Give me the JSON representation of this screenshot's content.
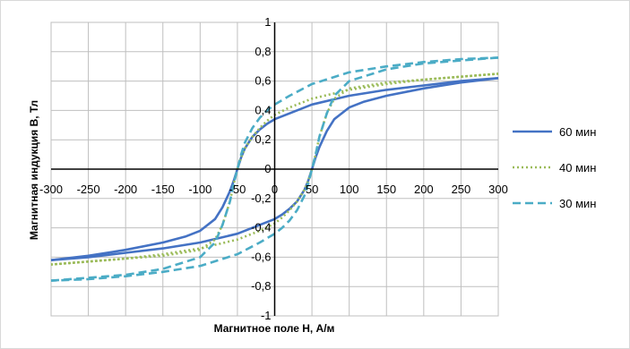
{
  "chart_data": {
    "type": "line",
    "title": "",
    "xlabel": "Магнитное поле H, А/м",
    "ylabel": "Магнитная индукция B, Тл",
    "xlim": [
      -300,
      300
    ],
    "ylim": [
      -1,
      1
    ],
    "x_ticks": [
      -300,
      -250,
      -200,
      -150,
      -100,
      -50,
      0,
      50,
      100,
      150,
      200,
      250,
      300
    ],
    "x_tick_labels": [
      "-300",
      "-250",
      "-200",
      "-150",
      "-100",
      "-50",
      "0",
      "50",
      "100",
      "150",
      "200",
      "250",
      "300"
    ],
    "y_ticks": [
      -1,
      -0.8,
      -0.6,
      -0.4,
      -0.2,
      0,
      0.2,
      0.4,
      0.6,
      0.8,
      1
    ],
    "y_tick_labels": [
      "-1",
      "-0,8",
      "-0,6",
      "-0,4",
      "-0,2",
      "0",
      "0,2",
      "0,4",
      "0,6",
      "0,8",
      "1"
    ],
    "grid": true,
    "legend_position": "right",
    "series": [
      {
        "name": "60 мин",
        "color": "#4472c4",
        "style": "solid",
        "upper_branch": {
          "x": [
            -300,
            -250,
            -200,
            -150,
            -120,
            -100,
            -80,
            -70,
            -60,
            -55,
            -50,
            -45,
            -40,
            -30,
            -20,
            -10,
            0,
            20,
            50,
            100,
            150,
            200,
            250,
            300
          ],
          "y": [
            -0.62,
            -0.59,
            -0.55,
            -0.5,
            -0.46,
            -0.42,
            -0.34,
            -0.26,
            -0.15,
            -0.08,
            0.0,
            0.08,
            0.14,
            0.22,
            0.27,
            0.31,
            0.34,
            0.38,
            0.44,
            0.5,
            0.54,
            0.57,
            0.6,
            0.62
          ]
        },
        "lower_branch": {
          "x": [
            300,
            250,
            200,
            150,
            120,
            100,
            80,
            70,
            60,
            55,
            50,
            45,
            40,
            30,
            20,
            10,
            0,
            -20,
            -50,
            -100,
            -150,
            -200,
            -250,
            -300
          ],
          "y": [
            0.62,
            0.59,
            0.55,
            0.5,
            0.46,
            0.42,
            0.34,
            0.26,
            0.15,
            0.08,
            0.0,
            -0.08,
            -0.14,
            -0.22,
            -0.27,
            -0.31,
            -0.34,
            -0.38,
            -0.44,
            -0.5,
            -0.54,
            -0.57,
            -0.6,
            -0.62
          ]
        }
      },
      {
        "name": "40 мин",
        "color": "#9bbb59",
        "style": "dotted",
        "upper_branch": {
          "x": [
            -300,
            -250,
            -200,
            -150,
            -100,
            -80,
            -70,
            -60,
            -55,
            -50,
            -45,
            -40,
            -30,
            -20,
            -10,
            0,
            20,
            50,
            100,
            150,
            200,
            250,
            300
          ],
          "y": [
            -0.65,
            -0.63,
            -0.61,
            -0.59,
            -0.55,
            -0.48,
            -0.38,
            -0.22,
            -0.1,
            0.0,
            0.08,
            0.14,
            0.22,
            0.28,
            0.33,
            0.37,
            0.42,
            0.48,
            0.54,
            0.58,
            0.61,
            0.63,
            0.65
          ]
        },
        "lower_branch": {
          "x": [
            300,
            250,
            200,
            150,
            100,
            80,
            70,
            60,
            55,
            50,
            45,
            40,
            30,
            20,
            10,
            0,
            -20,
            -50,
            -100,
            -150,
            -200,
            -250,
            -300
          ],
          "y": [
            0.65,
            0.63,
            0.61,
            0.59,
            0.55,
            0.48,
            0.38,
            0.22,
            0.1,
            0.0,
            -0.08,
            -0.14,
            -0.22,
            -0.28,
            -0.33,
            -0.37,
            -0.42,
            -0.48,
            -0.54,
            -0.58,
            -0.61,
            -0.63,
            -0.65
          ]
        }
      },
      {
        "name": "30 мин",
        "color": "#4bacc6",
        "style": "dashed",
        "upper_branch": {
          "x": [
            -300,
            -250,
            -200,
            -150,
            -100,
            -80,
            -70,
            -60,
            -55,
            -50,
            -45,
            -40,
            -30,
            -20,
            -10,
            0,
            20,
            50,
            100,
            150,
            200,
            250,
            300
          ],
          "y": [
            -0.76,
            -0.74,
            -0.72,
            -0.68,
            -0.6,
            -0.5,
            -0.38,
            -0.22,
            -0.1,
            0.0,
            0.1,
            0.18,
            0.28,
            0.35,
            0.4,
            0.44,
            0.5,
            0.58,
            0.66,
            0.7,
            0.73,
            0.75,
            0.76
          ]
        },
        "lower_branch": {
          "x": [
            300,
            250,
            200,
            150,
            100,
            80,
            70,
            60,
            55,
            50,
            45,
            40,
            30,
            20,
            10,
            0,
            -20,
            -50,
            -100,
            -150,
            -200,
            -250,
            -300
          ],
          "y": [
            0.76,
            0.74,
            0.72,
            0.68,
            0.6,
            0.5,
            0.38,
            0.22,
            0.1,
            0.0,
            -0.1,
            -0.18,
            -0.28,
            -0.35,
            -0.4,
            -0.44,
            -0.5,
            -0.58,
            -0.66,
            -0.7,
            -0.73,
            -0.75,
            -0.76
          ]
        }
      }
    ]
  }
}
